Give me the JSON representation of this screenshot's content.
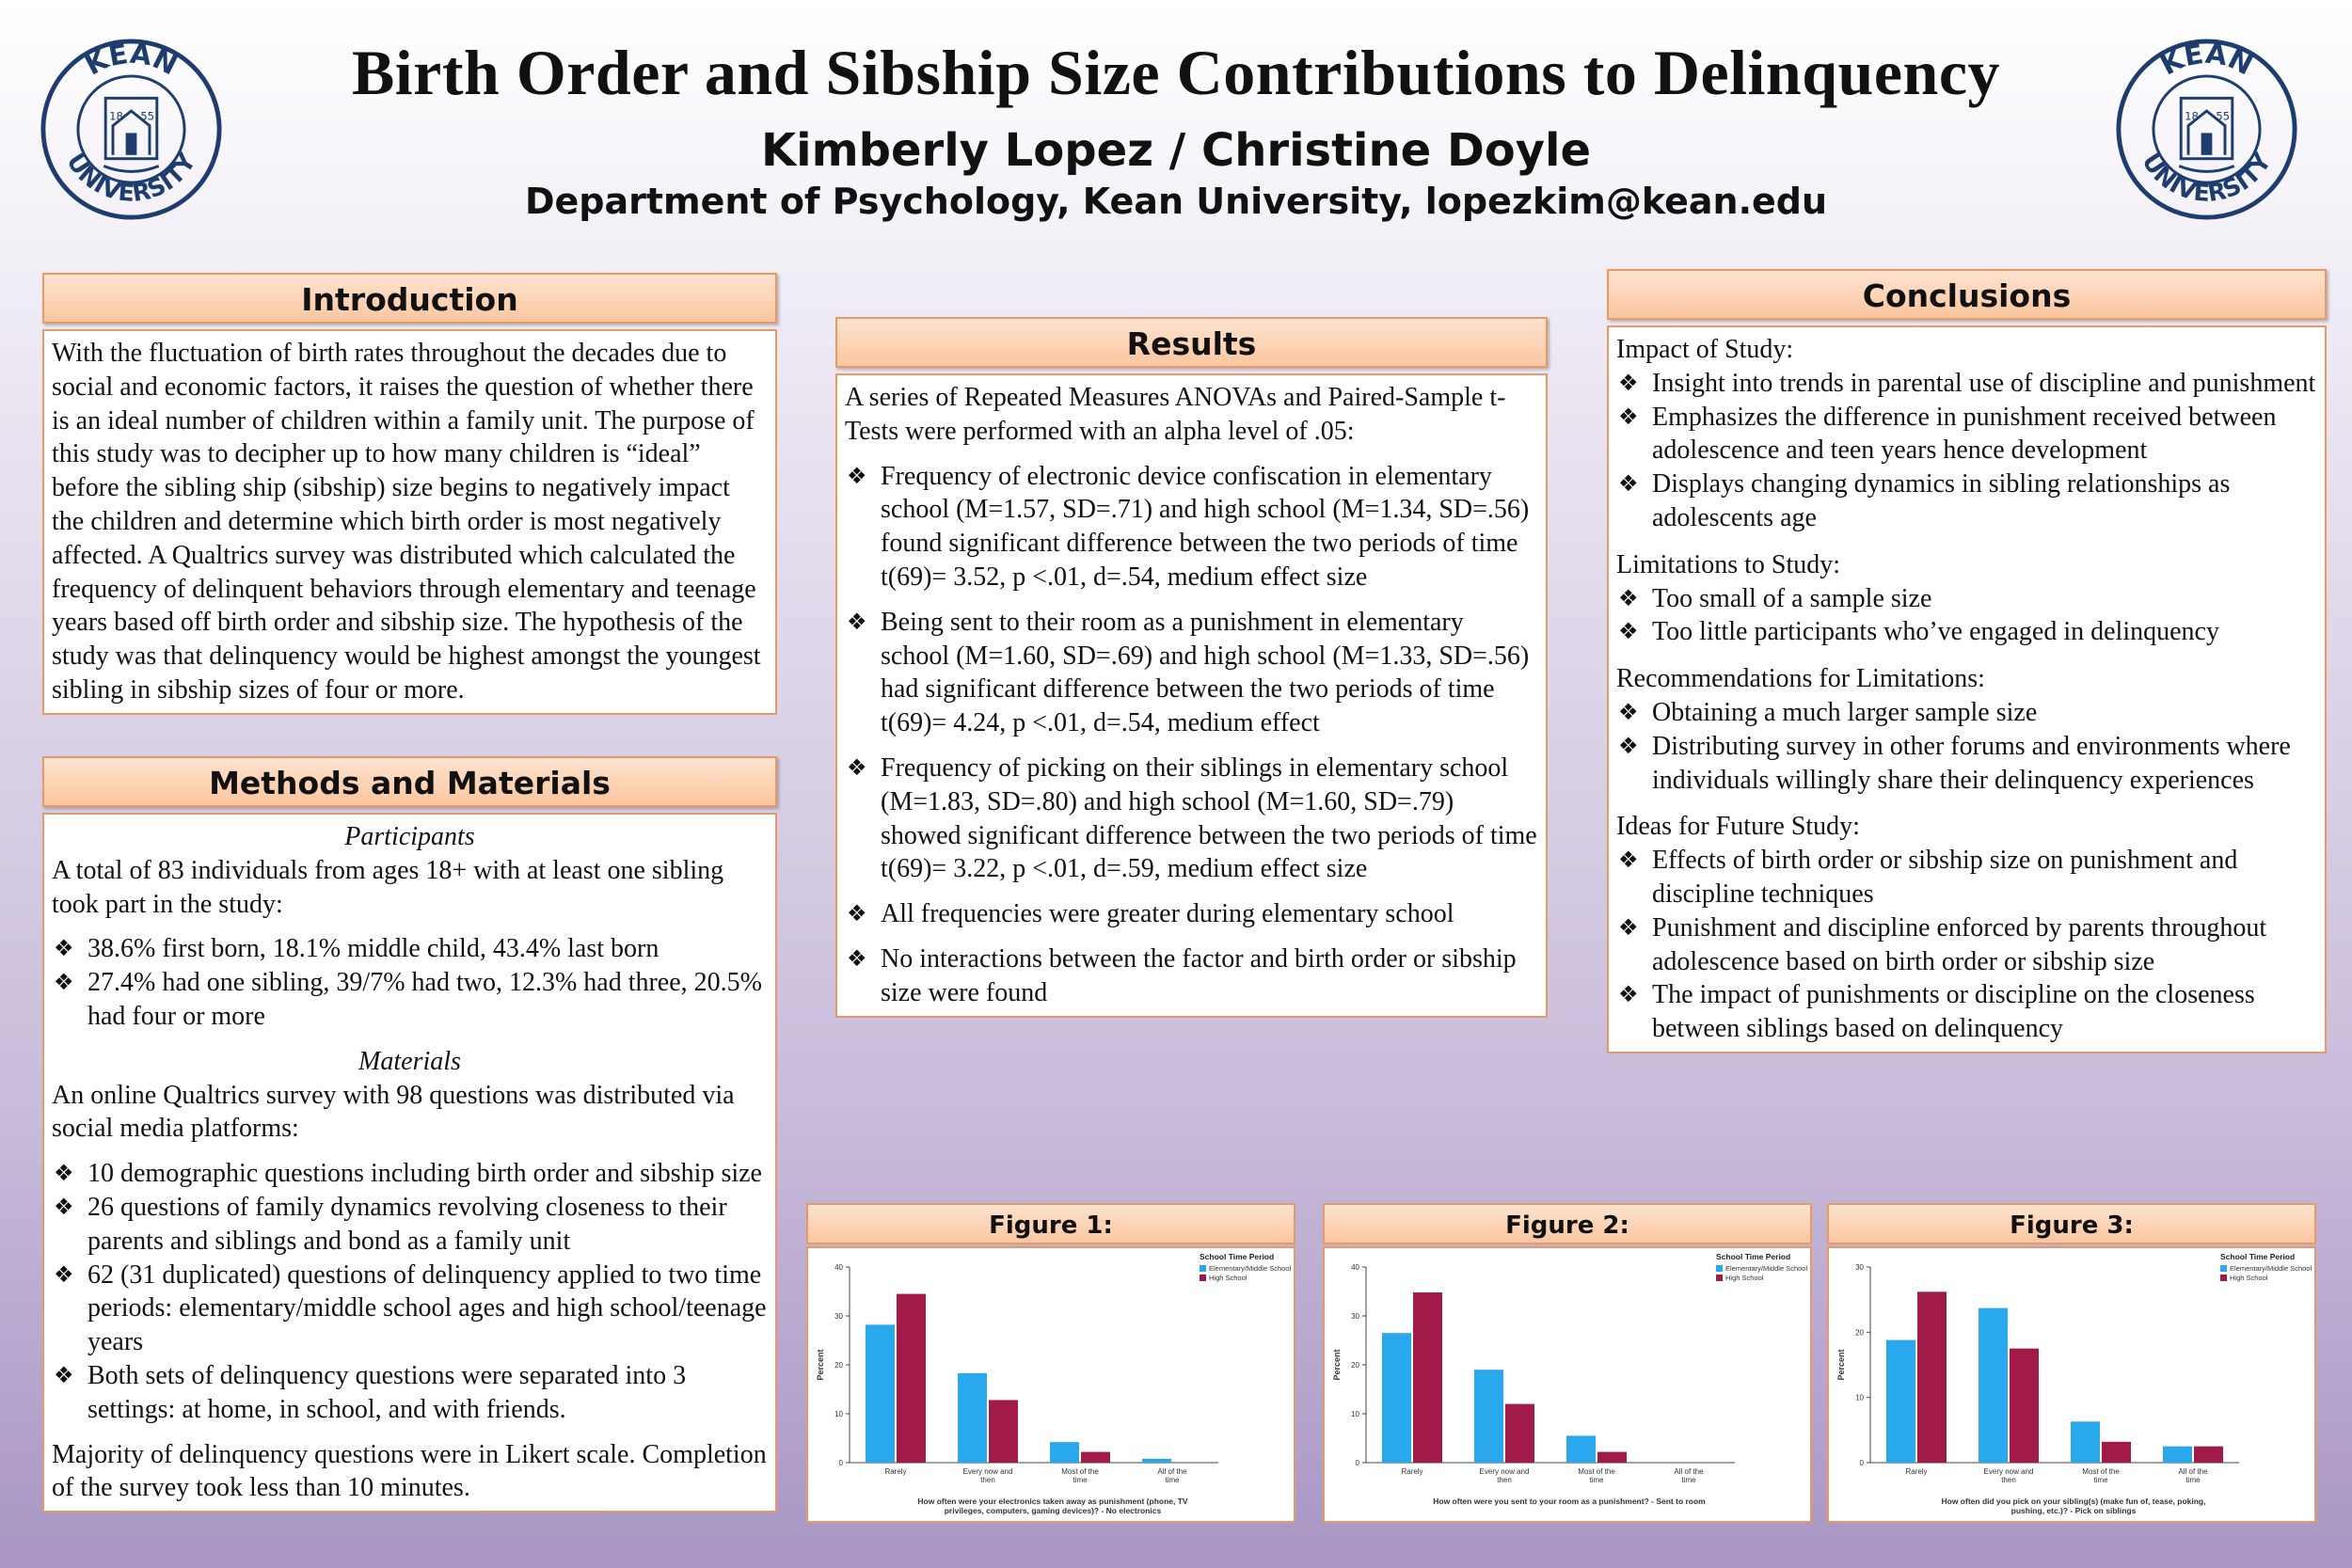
{
  "header": {
    "title": "Birth Order and Sibship Size Contributions to Delinquency",
    "authors": "Kimberly Lopez / Christine Doyle",
    "affiliation": "Department of Psychology, Kean University, lopezkim@kean.edu",
    "logo_text_top": "KEAN",
    "logo_text_bottom": "UNIVERSITY",
    "logo_year_left": "18",
    "logo_year_right": "55"
  },
  "introduction": {
    "heading": "Introduction",
    "text": "With the fluctuation of birth rates throughout the decades due to social and economic factors, it raises the question of whether there is an ideal number of children within a family unit. The purpose of this study was to decipher up to how many children is “ideal” before the sibling ship (sibship) size begins to negatively impact the children and determine which birth order is most negatively affected. A Qualtrics survey was distributed which calculated the frequency of delinquent behaviors through elementary and teenage years based off birth order and sibship size. The hypothesis of the study was that delinquency would be highest amongst the youngest sibling in sibship sizes of four or more."
  },
  "methods": {
    "heading": "Methods and Materials",
    "participants_heading": "Participants",
    "participants_text": "A total of 83 individuals from ages 18+ with at least one sibling took part in the study:",
    "participants_bullets": [
      "38.6% first born, 18.1% middle child, 43.4% last born",
      "27.4% had one sibling, 39/7% had two, 12.3% had three, 20.5% had four or more"
    ],
    "materials_heading": "Materials",
    "materials_text": "An online Qualtrics survey with 98 questions was distributed via social media platforms:",
    "materials_bullets": [
      "10 demographic questions including birth order and sibship size",
      "26 questions of family dynamics revolving closeness to their parents and siblings and bond as a family unit",
      "62 (31 duplicated) questions of delinquency applied to two time periods: elementary/middle school ages and high school/teenage years",
      "Both sets of delinquency questions were separated into 3 settings: at home, in school, and with friends."
    ],
    "closing_text": "Majority of delinquency questions were in Likert scale. Completion of the survey took less than 10 minutes."
  },
  "results": {
    "heading": "Results",
    "intro": "A series of Repeated Measures ANOVAs and Paired-Sample t-Tests were performed with an alpha level of .05:",
    "bullets": [
      "Frequency of electronic device confiscation in elementary school (M=1.57, SD=.71) and high school (M=1.34, SD=.56) found significant difference between the two periods of time t(69)= 3.52, p <.01, d=.54, medium effect size",
      "Being sent to their room as a punishment in elementary school (M=1.60, SD=.69) and high school (M=1.33, SD=.56) had significant difference between the two periods of time t(69)= 4.24, p <.01, d=.54, medium effect",
      "Frequency of picking on their siblings in elementary school (M=1.83, SD=.80) and high school (M=1.60, SD=.79) showed significant difference between the two periods of time t(69)= 3.22, p <.01, d=.59, medium effect size",
      "All frequencies were greater during elementary school",
      "No interactions between the factor and birth order or sibship size were found"
    ]
  },
  "conclusions": {
    "heading": "Conclusions",
    "impact_heading": "Impact of Study:",
    "impact_bullets": [
      "Insight into trends in parental use of discipline and punishment",
      "Emphasizes the difference in punishment received between adolescence and teen years hence development",
      "Displays changing dynamics in sibling relationships as adolescents age"
    ],
    "limitations_heading": "Limitations to Study:",
    "limitations_bullets": [
      "Too small of a sample size",
      "Too little participants who’ve engaged in delinquency"
    ],
    "recommendations_heading": "Recommendations for Limitations:",
    "recommendations_bullets": [
      "Obtaining a much larger sample size",
      "Distributing survey in other forums and environments where individuals willingly share their delinquency experiences"
    ],
    "future_heading": "Ideas for Future Study:",
    "future_bullets": [
      "Effects of birth order or sibship size on punishment and discipline techniques",
      "Punishment and discipline enforced by parents throughout adolescence based on birth order or sibship size",
      "The impact of punishments or discipline on the closeness between siblings based on delinquency"
    ]
  },
  "colors": {
    "elementary": "#2aa8ee",
    "high_school": "#a11a4a",
    "header_fill": "#fbc6a0",
    "header_border": "#e79a68",
    "logo": "#1d3d6e"
  },
  "chart_data": [
    {
      "heading": "Figure 1:",
      "type": "bar",
      "legend_title": "School Time Period",
      "legend_position": "top-right",
      "categories": [
        "Rarely",
        "Every now and then",
        "Most of the time",
        "All of the time"
      ],
      "series": [
        {
          "name": "Elementary/Middle School",
          "values": [
            28.2,
            18.3,
            4.2,
            0.8
          ]
        },
        {
          "name": "High School",
          "values": [
            34.5,
            12.8,
            2.2,
            0
          ]
        }
      ],
      "ylabel": "Percent",
      "xlabel": "How often were your electronics taken away as punishment (phone, TV privileges, computers, gaming devices)? - No electronics",
      "ylim": [
        0,
        40
      ],
      "yticks": [
        0,
        10,
        20,
        30,
        40
      ],
      "grid": false
    },
    {
      "heading": "Figure 2:",
      "type": "bar",
      "legend_title": "School Time Period",
      "legend_position": "top-right",
      "categories": [
        "Rarely",
        "Every now and then",
        "Most of the time",
        "All of the time"
      ],
      "series": [
        {
          "name": "Elementary/Middle School",
          "values": [
            26.5,
            19,
            5.5,
            0
          ]
        },
        {
          "name": "High School",
          "values": [
            34.8,
            12,
            2.2,
            0
          ]
        }
      ],
      "ylabel": "Percent",
      "xlabel": "How often were you sent to your room as a punishment? - Sent to room",
      "ylim": [
        0,
        40
      ],
      "yticks": [
        0,
        10,
        20,
        30,
        40
      ],
      "grid": false
    },
    {
      "heading": "Figure 3:",
      "type": "bar",
      "legend_title": "School Time Period",
      "legend_position": "top-right",
      "categories": [
        "Rarely",
        "Every now and then",
        "Most of the time",
        "All of the time"
      ],
      "series": [
        {
          "name": "Elementary/Middle School",
          "values": [
            18.8,
            23.7,
            6.3,
            2.5
          ]
        },
        {
          "name": "High School",
          "values": [
            26.2,
            17.5,
            3.2,
            2.5
          ]
        }
      ],
      "ylabel": "Percent",
      "xlabel": "How often did you pick on your sibling(s) (make fun of, tease, poking, pushing, etc.)? - Pick on siblings",
      "ylim": [
        0,
        30
      ],
      "yticks": [
        0,
        10,
        20,
        30
      ],
      "grid": false
    }
  ]
}
